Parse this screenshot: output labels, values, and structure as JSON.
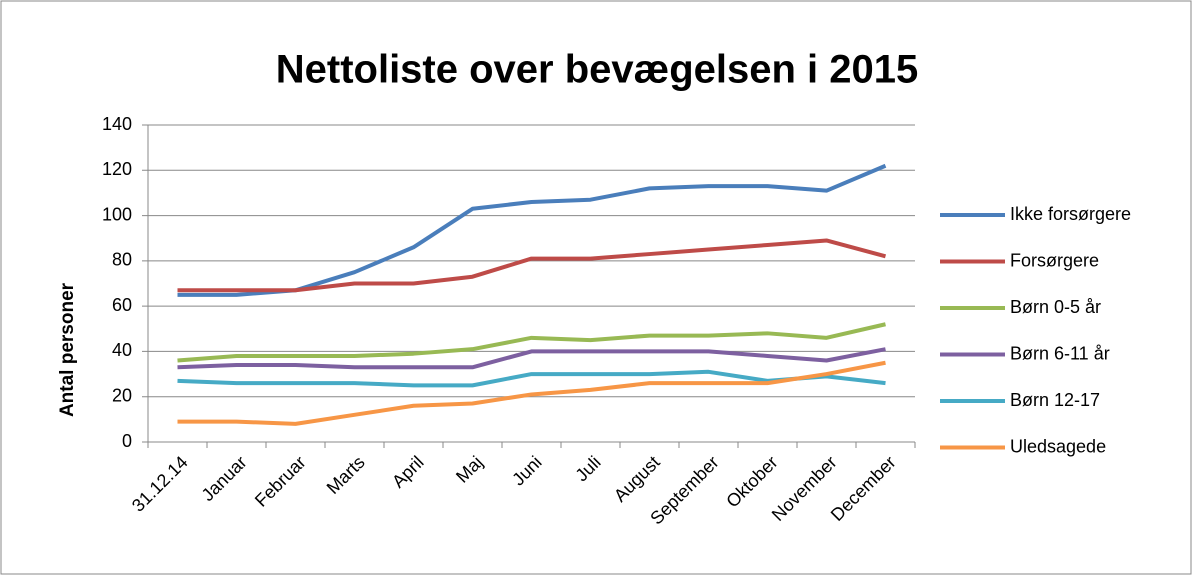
{
  "chart_data": {
    "type": "line",
    "title": "Nettoliste over bevægelsen i 2015",
    "y_label": "Antal personer",
    "categories": [
      "31.12.14",
      "Januar",
      "Februar",
      "Marts",
      "April",
      "Maj",
      "Juni",
      "Juli",
      "August",
      "September",
      "Oktober",
      "November",
      "December"
    ],
    "series": [
      {
        "name": "Ikke forsørgere",
        "color": "#4a7ebb",
        "values": [
          65,
          65,
          67,
          75,
          86,
          103,
          106,
          107,
          112,
          113,
          113,
          111,
          122
        ]
      },
      {
        "name": "Forsørgere",
        "color": "#be4b48",
        "values": [
          67,
          67,
          67,
          70,
          70,
          73,
          81,
          81,
          83,
          85,
          87,
          89,
          82
        ]
      },
      {
        "name": "Børn 0-5 år",
        "color": "#98b954",
        "values": [
          36,
          38,
          38,
          38,
          39,
          41,
          46,
          45,
          47,
          47,
          48,
          46,
          52
        ]
      },
      {
        "name": "Børn 6-11 år",
        "color": "#7d60a0",
        "values": [
          33,
          34,
          34,
          33,
          33,
          33,
          40,
          40,
          40,
          40,
          38,
          36,
          41
        ]
      },
      {
        "name": "Børn 12-17",
        "color": "#46aac5",
        "values": [
          27,
          26,
          26,
          26,
          25,
          25,
          30,
          30,
          30,
          31,
          27,
          29,
          26
        ]
      },
      {
        "name": "Uledsagede",
        "color": "#f79646",
        "values": [
          9,
          9,
          8,
          12,
          16,
          17,
          21,
          23,
          26,
          26,
          26,
          30,
          35
        ]
      }
    ],
    "ylim": [
      0,
      140
    ],
    "yticks": [
      0,
      20,
      40,
      60,
      80,
      100,
      120,
      140
    ],
    "grid": true,
    "legend": "right"
  }
}
